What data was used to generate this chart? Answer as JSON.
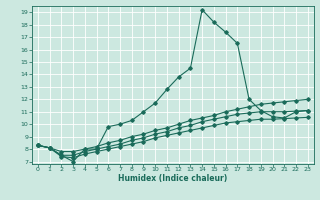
{
  "title": "",
  "xlabel": "Humidex (Indice chaleur)",
  "ylabel": "",
  "bg_color": "#cce8e0",
  "line_color": "#1a6b5a",
  "grid_color": "#ffffff",
  "xlim": [
    -0.5,
    23.5
  ],
  "ylim": [
    6.8,
    19.5
  ],
  "yticks": [
    7,
    8,
    9,
    10,
    11,
    12,
    13,
    14,
    15,
    16,
    17,
    18,
    19
  ],
  "xticks": [
    0,
    1,
    2,
    3,
    4,
    5,
    6,
    7,
    8,
    9,
    10,
    11,
    12,
    13,
    14,
    15,
    16,
    17,
    18,
    19,
    20,
    21,
    22,
    23
  ],
  "series1_x": [
    0,
    1,
    2,
    3,
    4,
    5,
    6,
    7,
    8,
    9,
    10,
    11,
    12,
    13,
    14,
    15,
    16,
    17,
    18,
    19,
    20,
    21,
    22,
    23
  ],
  "series1_y": [
    8.3,
    8.1,
    7.5,
    7.0,
    8.0,
    8.0,
    9.8,
    10.0,
    10.3,
    11.0,
    11.7,
    12.8,
    13.8,
    14.5,
    19.2,
    18.2,
    17.4,
    16.5,
    12.0,
    11.1,
    10.6,
    10.5,
    11.0,
    11.1
  ],
  "series2_x": [
    0,
    1,
    2,
    3,
    4,
    5,
    6,
    7,
    8,
    9,
    10,
    11,
    12,
    13,
    14,
    15,
    16,
    17,
    18,
    19,
    20,
    21,
    22,
    23
  ],
  "series2_y": [
    8.3,
    8.1,
    7.8,
    7.8,
    8.0,
    8.2,
    8.5,
    8.7,
    9.0,
    9.2,
    9.5,
    9.7,
    10.0,
    10.3,
    10.5,
    10.7,
    11.0,
    11.2,
    11.4,
    11.6,
    11.7,
    11.8,
    11.9,
    12.0
  ],
  "series3_x": [
    0,
    1,
    2,
    3,
    4,
    5,
    6,
    7,
    8,
    9,
    10,
    11,
    12,
    13,
    14,
    15,
    16,
    17,
    18,
    19,
    20,
    21,
    22,
    23
  ],
  "series3_y": [
    8.3,
    8.1,
    7.5,
    7.5,
    7.8,
    8.0,
    8.2,
    8.4,
    8.7,
    8.9,
    9.2,
    9.4,
    9.7,
    9.9,
    10.2,
    10.4,
    10.6,
    10.8,
    10.9,
    11.0,
    11.0,
    11.0,
    11.05,
    11.1
  ],
  "series4_x": [
    0,
    1,
    2,
    3,
    4,
    5,
    6,
    7,
    8,
    9,
    10,
    11,
    12,
    13,
    14,
    15,
    16,
    17,
    18,
    19,
    20,
    21,
    22,
    23
  ],
  "series4_y": [
    8.3,
    8.1,
    7.4,
    7.3,
    7.6,
    7.8,
    8.0,
    8.2,
    8.4,
    8.6,
    8.9,
    9.1,
    9.3,
    9.5,
    9.7,
    9.9,
    10.1,
    10.2,
    10.3,
    10.4,
    10.4,
    10.45,
    10.5,
    10.55
  ]
}
